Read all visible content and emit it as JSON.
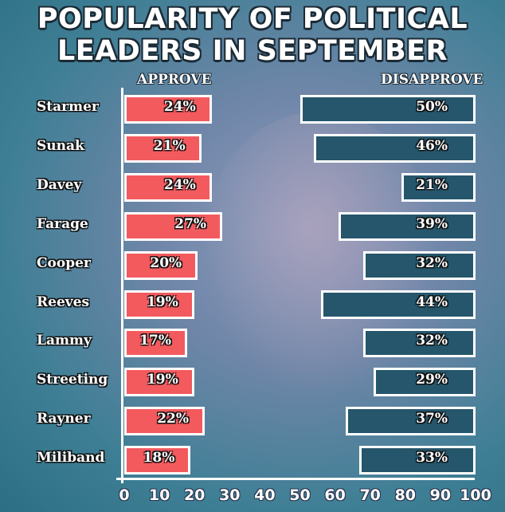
{
  "title_lines": [
    "POPULARITY OF POLITICAL",
    "LEADERS IN SEPTEMBER"
  ],
  "chart_data": {
    "type": "bar",
    "title": "POPULARITY OF POLITICAL LEADERS IN SEPTEMBER",
    "categories": [
      "Starmer",
      "Sunak",
      "Davey",
      "Farage",
      "Cooper",
      "Reeves",
      "Lammy",
      "Streeting",
      "Rayner",
      "Miliband"
    ],
    "series": [
      {
        "name": "APPROVE",
        "values": [
          24,
          21,
          24,
          27,
          20,
          19,
          17,
          19,
          22,
          18
        ],
        "color": "#f25a5e",
        "anchor": "left"
      },
      {
        "name": "DISAPPROVE",
        "values": [
          50,
          46,
          21,
          39,
          32,
          44,
          32,
          29,
          37,
          33
        ],
        "color": "#25566b",
        "anchor": "right"
      }
    ],
    "xlim": [
      0,
      100
    ],
    "xticks": [
      0,
      10,
      20,
      30,
      40,
      50,
      60,
      70,
      80,
      90,
      100
    ],
    "value_suffix": "%",
    "grid": false,
    "legend": "column headers at top"
  }
}
